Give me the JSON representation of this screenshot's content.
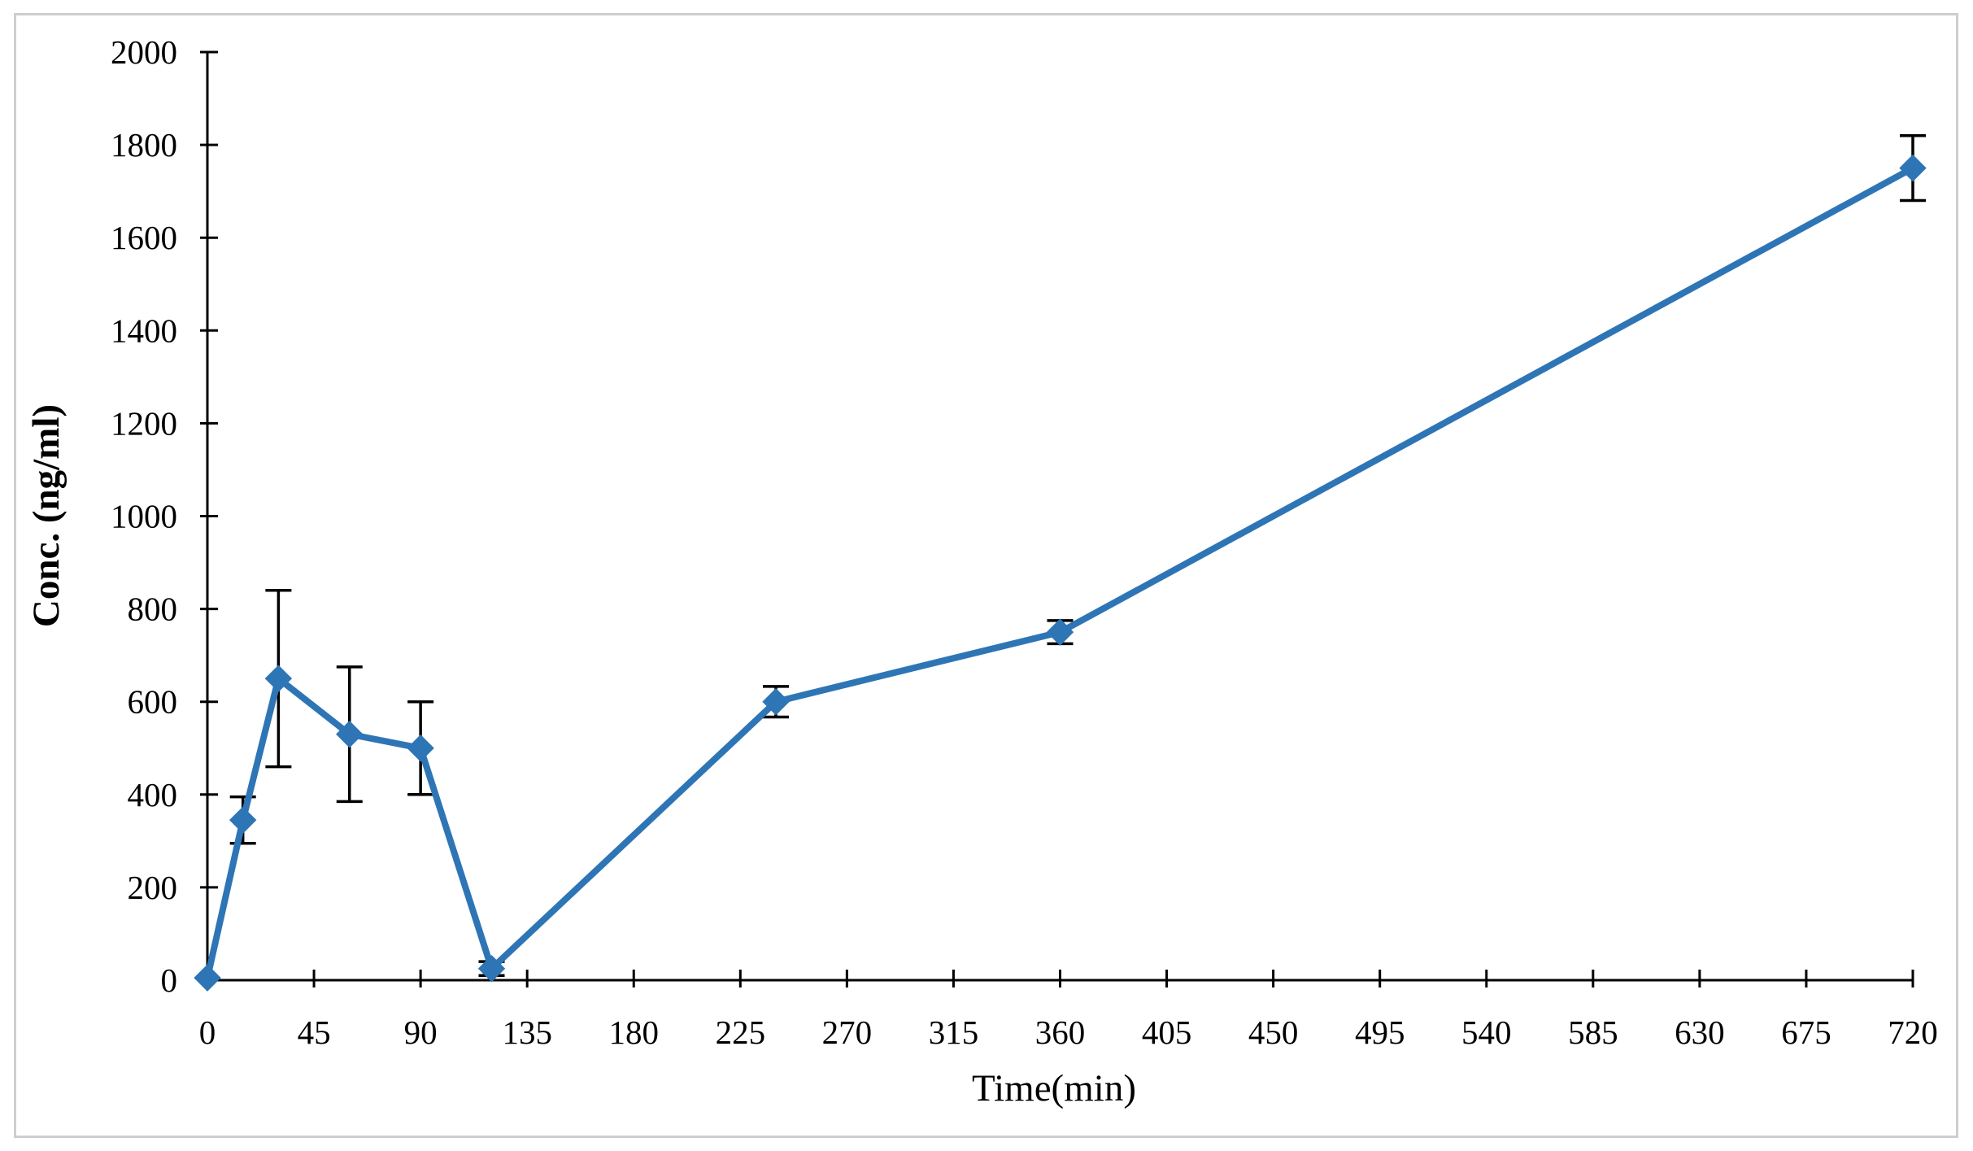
{
  "figure": {
    "background_color": "#ffffff",
    "frame_color": "#cccfd0"
  },
  "chart_data": {
    "type": "line",
    "title": "",
    "xlabel": "Time(min)",
    "ylabel": "Conc. (ng/ml)",
    "xlim": [
      0,
      720
    ],
    "ylim": [
      0,
      2000
    ],
    "xticks": [
      0,
      45,
      90,
      135,
      180,
      225,
      270,
      315,
      360,
      405,
      450,
      495,
      540,
      585,
      630,
      675,
      720
    ],
    "yticks": [
      0,
      200,
      400,
      600,
      800,
      1000,
      1200,
      1400,
      1600,
      1800,
      2000
    ],
    "grid": false,
    "legend": null,
    "axis_color": "#000000",
    "tick_label_color": "#000000",
    "error_bar_color": "#000000",
    "series": [
      {
        "name": "concentration",
        "color": "#2e75b6",
        "marker": "diamond",
        "x": [
          0,
          15,
          30,
          60,
          90,
          120,
          240,
          360,
          720
        ],
        "y": [
          5,
          345,
          650,
          530,
          500,
          25,
          600,
          750,
          1750
        ],
        "yerr": [
          0,
          50,
          190,
          145,
          100,
          15,
          33,
          25,
          70
        ]
      }
    ]
  }
}
